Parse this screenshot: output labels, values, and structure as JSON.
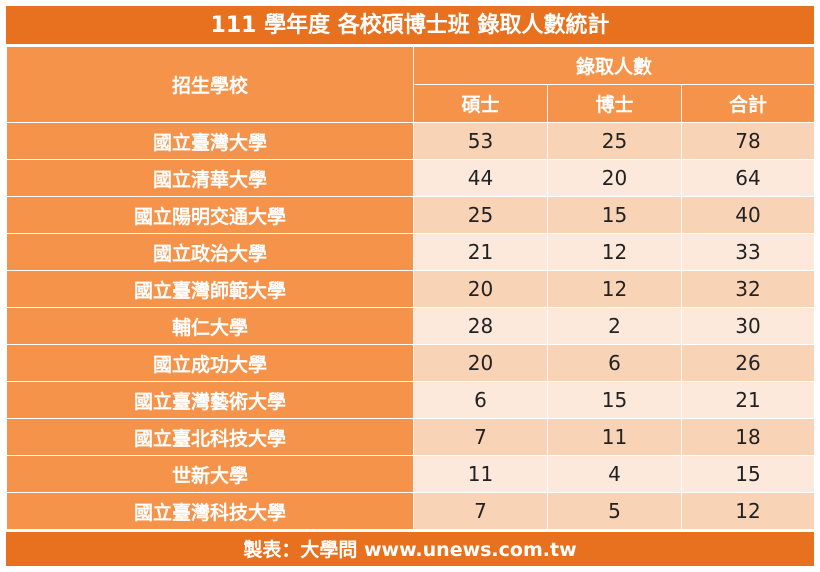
{
  "title": "111 學年度 各校碩博士班 錄取人數統計",
  "header": {
    "school_label": "招生學校",
    "group_label": "錄取人數",
    "columns": [
      "碩士",
      "博士",
      "合計"
    ]
  },
  "rows": [
    {
      "school": "國立臺灣大學",
      "master": "53",
      "phd": "25",
      "total": "78"
    },
    {
      "school": "國立清華大學",
      "master": "44",
      "phd": "20",
      "total": "64"
    },
    {
      "school": "國立陽明交通大學",
      "master": "25",
      "phd": "15",
      "total": "40"
    },
    {
      "school": "國立政治大學",
      "master": "21",
      "phd": "12",
      "total": "33"
    },
    {
      "school": "國立臺灣師範大學",
      "master": "20",
      "phd": "12",
      "total": "32"
    },
    {
      "school": "輔仁大學",
      "master": "28",
      "phd": "2",
      "total": "30"
    },
    {
      "school": "國立成功大學",
      "master": "20",
      "phd": "6",
      "total": "26"
    },
    {
      "school": "國立臺灣藝術大學",
      "master": "6",
      "phd": "15",
      "total": "21"
    },
    {
      "school": "國立臺北科技大學",
      "master": "7",
      "phd": "11",
      "total": "18"
    },
    {
      "school": "世新大學",
      "master": "11",
      "phd": "4",
      "total": "15"
    },
    {
      "school": "國立臺灣科技大學",
      "master": "7",
      "phd": "5",
      "total": "12"
    }
  ],
  "footer": "製表：大學問 www.unews.com.tw",
  "colors": {
    "title_bg": "#e8711f",
    "header_bg": "#f5934a",
    "row_odd": "#f9d3b6",
    "row_even": "#fce9dc"
  }
}
